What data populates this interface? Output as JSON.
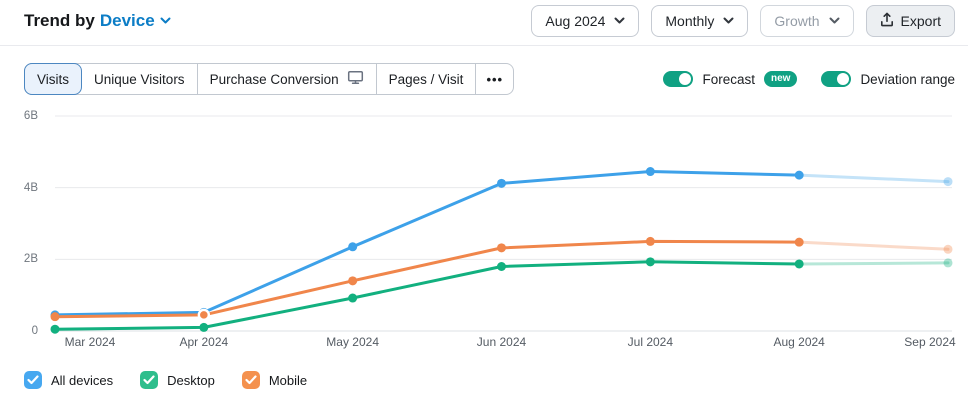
{
  "header": {
    "title_prefix": "Trend by",
    "title_link": "Device",
    "controls": {
      "date_range": "Aug 2024",
      "granularity": "Monthly",
      "metric_mode": "Growth",
      "export_label": "Export"
    }
  },
  "toolbar": {
    "tabs": [
      {
        "label": "Visits",
        "selected": true
      },
      {
        "label": "Unique Visitors",
        "selected": false
      },
      {
        "label": "Purchase Conversion",
        "selected": false,
        "icon": "desktop-icon"
      },
      {
        "label": "Pages / Visit",
        "selected": false
      }
    ],
    "more_label": "•••",
    "toggles": [
      {
        "label": "Forecast",
        "badge": "new",
        "on": true
      },
      {
        "label": "Deviation range",
        "on": true
      }
    ]
  },
  "chart_data": {
    "type": "line",
    "title": "Trend by Device — Visits",
    "categories": [
      "Mar 2024",
      "Apr 2024",
      "May 2024",
      "Jun 2024",
      "Jul 2024",
      "Aug 2024",
      "Sep 2024"
    ],
    "series": [
      {
        "name": "All devices",
        "color": "#3DA1E9",
        "values": [
          0.45,
          0.52,
          2.35,
          4.12,
          4.45,
          4.35,
          4.17
        ]
      },
      {
        "name": "Desktop",
        "color": "#12B07F",
        "values": [
          0.05,
          0.1,
          0.92,
          1.8,
          1.93,
          1.87,
          1.9
        ]
      },
      {
        "name": "Mobile",
        "color": "#F0864B",
        "values": [
          0.4,
          0.45,
          1.4,
          2.32,
          2.5,
          2.48,
          2.28
        ]
      }
    ],
    "unit": "billions of visits",
    "ylim": [
      0,
      6
    ],
    "yticks": [
      0,
      2,
      4,
      6
    ],
    "ytick_labels": [
      "0",
      "2B",
      "4B",
      "6B"
    ],
    "grid": "horizontal",
    "forecast_start_index": 5,
    "forecast_opacity": 0.3,
    "highlight_point": {
      "series": "Mobile",
      "index": 1
    },
    "legend_position": "bottom"
  },
  "legend": {
    "items": [
      {
        "label": "All devices",
        "color": "#47A8F0",
        "checked": true
      },
      {
        "label": "Desktop",
        "color": "#2EBE8C",
        "checked": true
      },
      {
        "label": "Mobile",
        "color": "#F4914E",
        "checked": true
      }
    ]
  },
  "colors": {
    "accent_blue": "#0C7DC6",
    "toggle_teal": "#10A183",
    "selected_tab_bg": "#EAF2FC",
    "selected_tab_border": "#4C87C1",
    "gridline": "#E8EAEC"
  }
}
